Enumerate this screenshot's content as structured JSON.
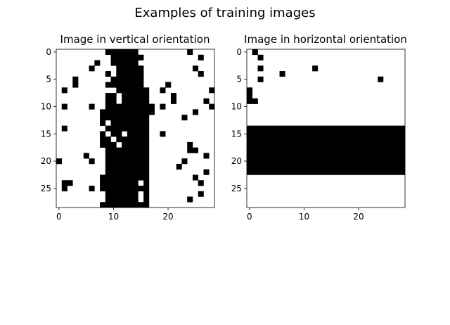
{
  "figure": {
    "suptitle": "Examples of training images"
  },
  "chart_data": [
    {
      "type": "heatmap",
      "title": "Image in vertical orientation",
      "xlabel": "",
      "ylabel": "",
      "xlim": [
        -0.5,
        28.5
      ],
      "ylim": [
        28.5,
        -0.5
      ],
      "x_ticks": [
        0,
        10,
        20
      ],
      "y_ticks": [
        0,
        5,
        10,
        15,
        20,
        25
      ],
      "grid": false,
      "colormap": {
        "one": "#000000",
        "zero": "#ffffff"
      },
      "rows": [
        "00000000011111100000000010000",
        "00000000001111110000000000100",
        "00000001001111100000000000000",
        "00000010000111110000000001000",
        "00000000010111110000000000100",
        "00010000001111110000000000000",
        "00010000011111110000100000000",
        "01000000000111111001000000001",
        "00000000011011111000010000000",
        "00000000011011111000010000010",
        "01000010011111111101000000001",
        "00000000111111111100000001000",
        "00000000111111111000000100000",
        "00000000101111111000000000000",
        "01000000011111111000000000000",
        "00000000101101111001000000000",
        "00000000110111111000000000000",
        "00000000111011111000000010000",
        "00000000011111111000000011000",
        "00000100011111111000000000010",
        "10000010011111111000000100000",
        "00000000011111111000001000000",
        "00000000011111111000000000010",
        "00000000111111111000000001000",
        "01100000111111101000000000100",
        "01000010111111111000000000000",
        "00000000011111101000000000100",
        "00000000011111101000000010000",
        "00000000111111111000000000000"
      ]
    },
    {
      "type": "heatmap",
      "title": "Image in horizontal orientation",
      "xlabel": "",
      "ylabel": "",
      "xlim": [
        -0.5,
        28.5
      ],
      "ylim": [
        28.5,
        -0.5
      ],
      "x_ticks": [
        0,
        10,
        20
      ],
      "y_ticks": [
        0,
        5,
        10,
        15,
        20,
        25
      ],
      "grid": false,
      "colormap": {
        "one": "#000000",
        "zero": "#ffffff"
      },
      "rows": [
        "01000000000000000000000000000",
        "00100000000000000000000000000",
        "00000000000000000000000000000",
        "00100000000010000000000000000",
        "00000010000000000000000000000",
        "00100000000000000000000010000",
        "00000000000000000000000000000",
        "10000000000000000000000000000",
        "10000000000000000000000000000",
        "11000000000000000000000000000",
        "00000000000000000000000000000",
        "00000000000000000000000000000",
        "00000000000000000000000000000",
        "00000000000000000000000000000",
        "11111111111111111111111111111",
        "11111111111111111111111111111",
        "11111111111111111111111111111",
        "11111111111111111111111111111",
        "11111111111111111111111111111",
        "11111111111111111111111111111",
        "11111111111111111111111111111",
        "11111111111111111111111111111",
        "11111111111111111111111111111",
        "00000000000000000000000000000",
        "00000000000000000000000000000",
        "00000000000000000000000000000",
        "00000000000000000000000000000",
        "00000000000000000000000000000",
        "00000000000000000000000000000"
      ]
    }
  ]
}
